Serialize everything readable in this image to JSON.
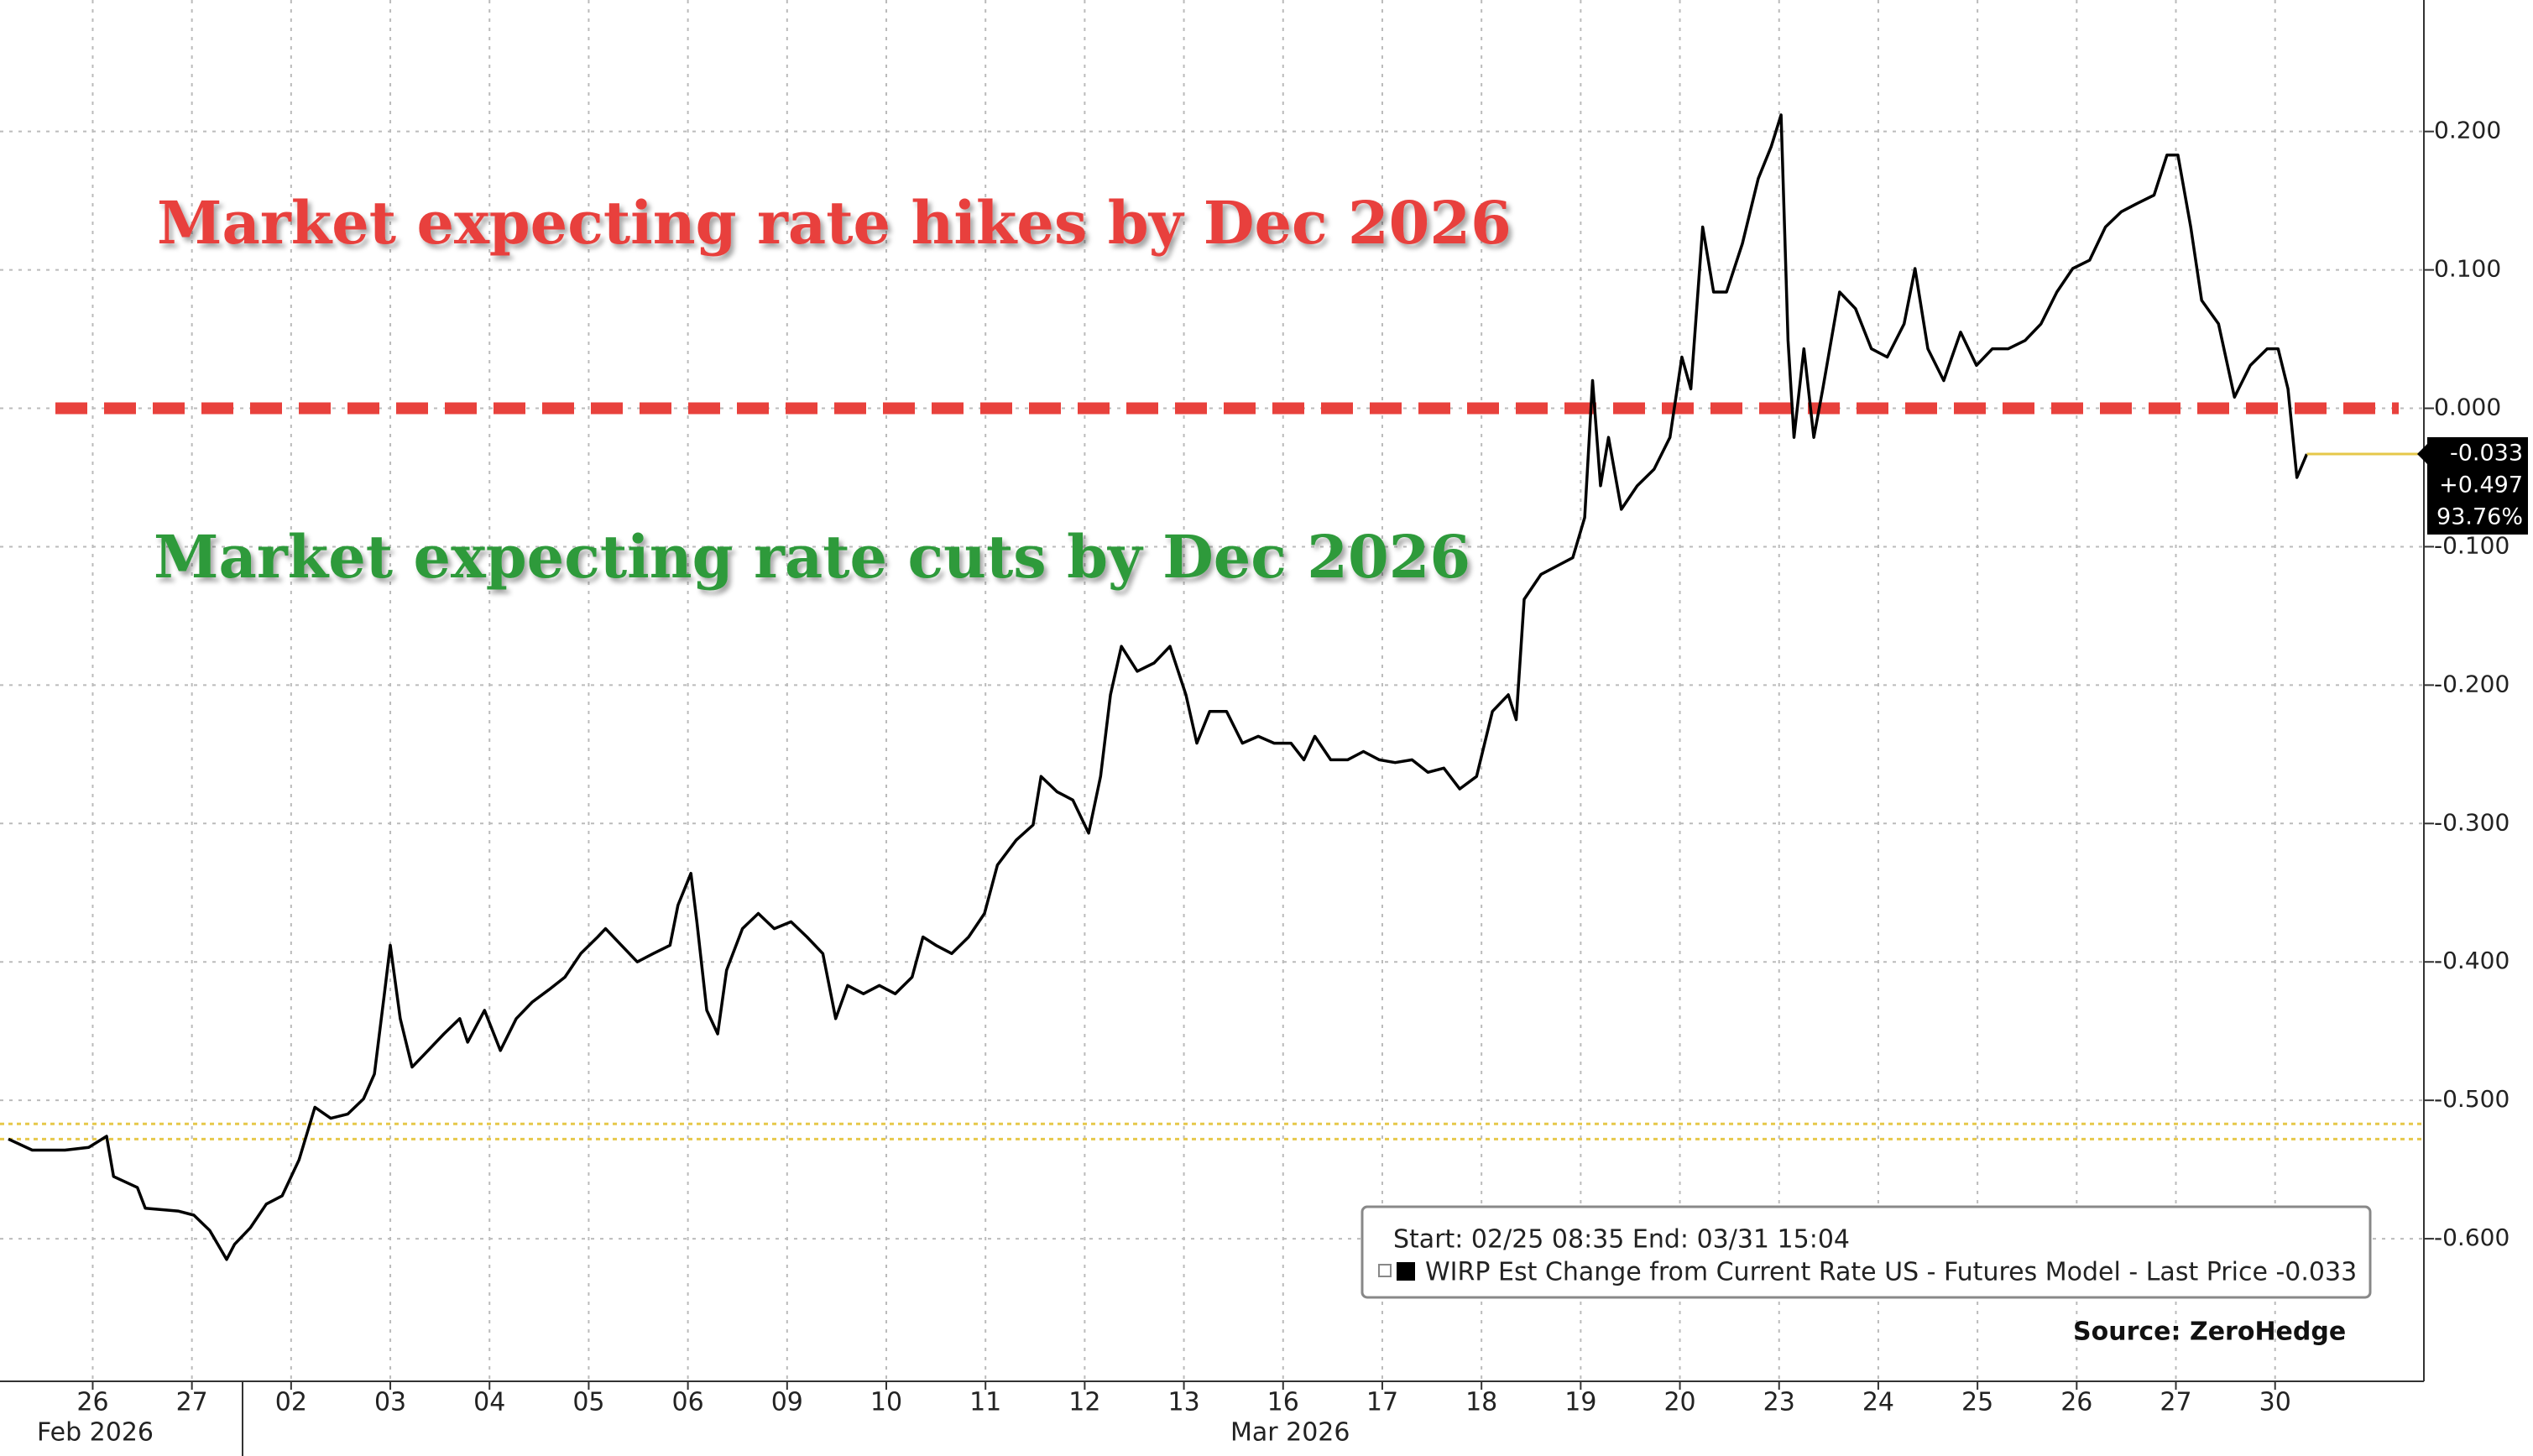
{
  "chart_data": {
    "type": "line",
    "annotations": [
      "Market expecting rate hikes by Dec 2026",
      "Market expecting rate cuts by Dec 2026"
    ],
    "annotation_colors": [
      "#e8413c",
      "#2e9a3a"
    ],
    "legend_header": "Start: 02/25 08:35 End: 03/31 15:04",
    "source": "Source: ZeroHedge",
    "last_price_labels": [
      "-0.033",
      "+0.497",
      "93.76%"
    ],
    "x_group_labels": [
      "Feb 2026",
      "Mar 2026"
    ],
    "xlim": [
      -0.35,
      24
    ],
    "ylim": [
      -0.7,
      0.295
    ],
    "xticks": [
      {
        "value": 0.5,
        "label": "26"
      },
      {
        "value": 1.5,
        "label": "27"
      },
      {
        "value": 2.5,
        "label": "02"
      },
      {
        "value": 3.5,
        "label": "03"
      },
      {
        "value": 4.5,
        "label": "04"
      },
      {
        "value": 5.5,
        "label": "05"
      },
      {
        "value": 6.5,
        "label": "06"
      },
      {
        "value": 7.5,
        "label": "09"
      },
      {
        "value": 8.5,
        "label": "10"
      },
      {
        "value": 9.5,
        "label": "11"
      },
      {
        "value": 10.5,
        "label": "12"
      },
      {
        "value": 11.5,
        "label": "13"
      },
      {
        "value": 12.5,
        "label": "16"
      },
      {
        "value": 13.5,
        "label": "17"
      },
      {
        "value": 14.5,
        "label": "18"
      },
      {
        "value": 15.5,
        "label": "19"
      },
      {
        "value": 16.5,
        "label": "20"
      },
      {
        "value": 17.5,
        "label": "23"
      },
      {
        "value": 18.5,
        "label": "24"
      },
      {
        "value": 19.5,
        "label": "25"
      },
      {
        "value": 20.5,
        "label": "26"
      },
      {
        "value": 21.5,
        "label": "27"
      },
      {
        "value": 22.5,
        "label": "30"
      }
    ],
    "yticks": [
      {
        "value": 0.2,
        "label": "0.200"
      },
      {
        "value": 0.1,
        "label": "0.100"
      },
      {
        "value": 0,
        "label": "0.000"
      },
      {
        "value": -0.1,
        "label": "-0.100"
      },
      {
        "value": -0.2,
        "label": "-0.200"
      },
      {
        "value": -0.3,
        "label": "-0.300"
      },
      {
        "value": -0.4,
        "label": "-0.400"
      },
      {
        "value": -0.5,
        "label": "-0.500"
      },
      {
        "value": -0.6,
        "label": "-0.600"
      }
    ],
    "grid": true,
    "hlines": [
      {
        "value": 0,
        "color": "#e8413c",
        "style": "dashed"
      },
      {
        "value": -0.517,
        "color": "#e6c84a",
        "style": "dotted"
      },
      {
        "value": -0.528,
        "color": "#e6c84a",
        "style": "dotted"
      }
    ],
    "x": [
      -0.35,
      -0.11,
      0.22,
      0.46,
      0.64,
      0.71,
      0.95,
      1.03,
      1.36,
      1.52,
      1.68,
      1.85,
      1.93,
      2.09,
      2.25,
      2.41,
      2.58,
      2.74,
      2.9,
      3.07,
      3.23,
      3.34,
      3.44,
      3.5,
      3.6,
      3.72,
      3.88,
      4.04,
      4.2,
      4.28,
      4.45,
      4.61,
      4.77,
      4.93,
      5.1,
      5.26,
      5.42,
      5.59,
      5.67,
      5.83,
      5.99,
      6.15,
      6.32,
      6.4,
      6.53,
      6.59,
      6.69,
      6.8,
      6.89,
      7.05,
      7.21,
      7.37,
      7.54,
      7.7,
      7.86,
      7.99,
      8.11,
      8.27,
      8.43,
      8.59,
      8.76,
      8.87,
      9.0,
      9.16,
      9.33,
      9.49,
      9.62,
      9.81,
      9.98,
      10.06,
      10.22,
      10.38,
      10.54,
      10.66,
      10.76,
      10.87,
      11.03,
      11.2,
      11.36,
      11.52,
      11.63,
      11.76,
      11.93,
      12.09,
      12.25,
      12.41,
      12.58,
      12.71,
      12.82,
      12.98,
      13.15,
      13.31,
      13.47,
      13.63,
      13.8,
      13.96,
      14.12,
      14.28,
      14.45,
      14.61,
      14.77,
      14.85,
      14.93,
      15.1,
      15.26,
      15.42,
      15.54,
      15.62,
      15.7,
      15.78,
      15.91,
      16.07,
      16.24,
      16.4,
      16.52,
      16.61,
      16.73,
      16.84,
      16.97,
      17.13,
      17.29,
      17.42,
      17.52,
      17.59,
      17.65,
      17.75,
      17.85,
      17.94,
      18.11,
      18.27,
      18.43,
      18.59,
      18.76,
      18.87,
      19.0,
      19.16,
      19.33,
      19.49,
      19.65,
      19.81,
      19.98,
      20.14,
      20.3,
      20.46,
      20.63,
      20.79,
      20.95,
      21.11,
      21.28,
      21.41,
      21.52,
      21.65,
      21.76,
      21.93,
      22.09,
      22.25,
      22.42,
      22.53,
      22.63,
      22.72,
      22.82
    ],
    "series": [
      {
        "name": "WIRP Est Change from Current Rate US - Futures Model - Last Price -0.033",
        "color": "#000000",
        "values": [
          -0.528,
          -0.536,
          -0.536,
          -0.534,
          -0.526,
          -0.555,
          -0.563,
          -0.578,
          -0.58,
          -0.583,
          -0.594,
          -0.615,
          -0.604,
          -0.592,
          -0.575,
          -0.569,
          -0.543,
          -0.505,
          -0.513,
          -0.51,
          -0.499,
          -0.481,
          -0.423,
          -0.388,
          -0.441,
          -0.476,
          -0.464,
          -0.452,
          -0.441,
          -0.458,
          -0.435,
          -0.464,
          -0.441,
          -0.429,
          -0.42,
          -0.411,
          -0.394,
          -0.382,
          -0.376,
          -0.388,
          -0.4,
          -0.394,
          -0.388,
          -0.359,
          -0.336,
          -0.371,
          -0.435,
          -0.452,
          -0.406,
          -0.376,
          -0.365,
          -0.376,
          -0.371,
          -0.382,
          -0.394,
          -0.441,
          -0.417,
          -0.423,
          -0.417,
          -0.423,
          -0.411,
          -0.382,
          -0.388,
          -0.394,
          -0.382,
          -0.365,
          -0.33,
          -0.312,
          -0.301,
          -0.266,
          -0.277,
          -0.283,
          -0.307,
          -0.266,
          -0.207,
          -0.172,
          -0.19,
          -0.184,
          -0.172,
          -0.207,
          -0.242,
          -0.219,
          -0.219,
          -0.242,
          -0.237,
          -0.242,
          -0.242,
          -0.254,
          -0.237,
          -0.254,
          -0.254,
          -0.248,
          -0.254,
          -0.256,
          -0.254,
          -0.263,
          -0.26,
          -0.275,
          -0.266,
          -0.219,
          -0.207,
          -0.225,
          -0.138,
          -0.12,
          -0.114,
          -0.108,
          -0.079,
          0.02,
          -0.056,
          -0.021,
          -0.073,
          -0.056,
          -0.044,
          -0.021,
          0.037,
          0.014,
          0.131,
          0.084,
          0.084,
          0.119,
          0.166,
          0.189,
          0.212,
          0.049,
          -0.021,
          0.043,
          -0.021,
          0.014,
          0.084,
          0.072,
          0.043,
          0.037,
          0.061,
          0.101,
          0.043,
          0.02,
          0.055,
          0.031,
          0.043,
          0.043,
          0.049,
          0.061,
          0.084,
          0.101,
          0.107,
          0.131,
          0.142,
          0.148,
          0.154,
          0.183,
          0.183,
          0.131,
          0.078,
          0.061,
          0.008,
          0.031,
          0.043,
          0.043,
          0.014,
          -0.05,
          -0.033
        ]
      }
    ]
  }
}
